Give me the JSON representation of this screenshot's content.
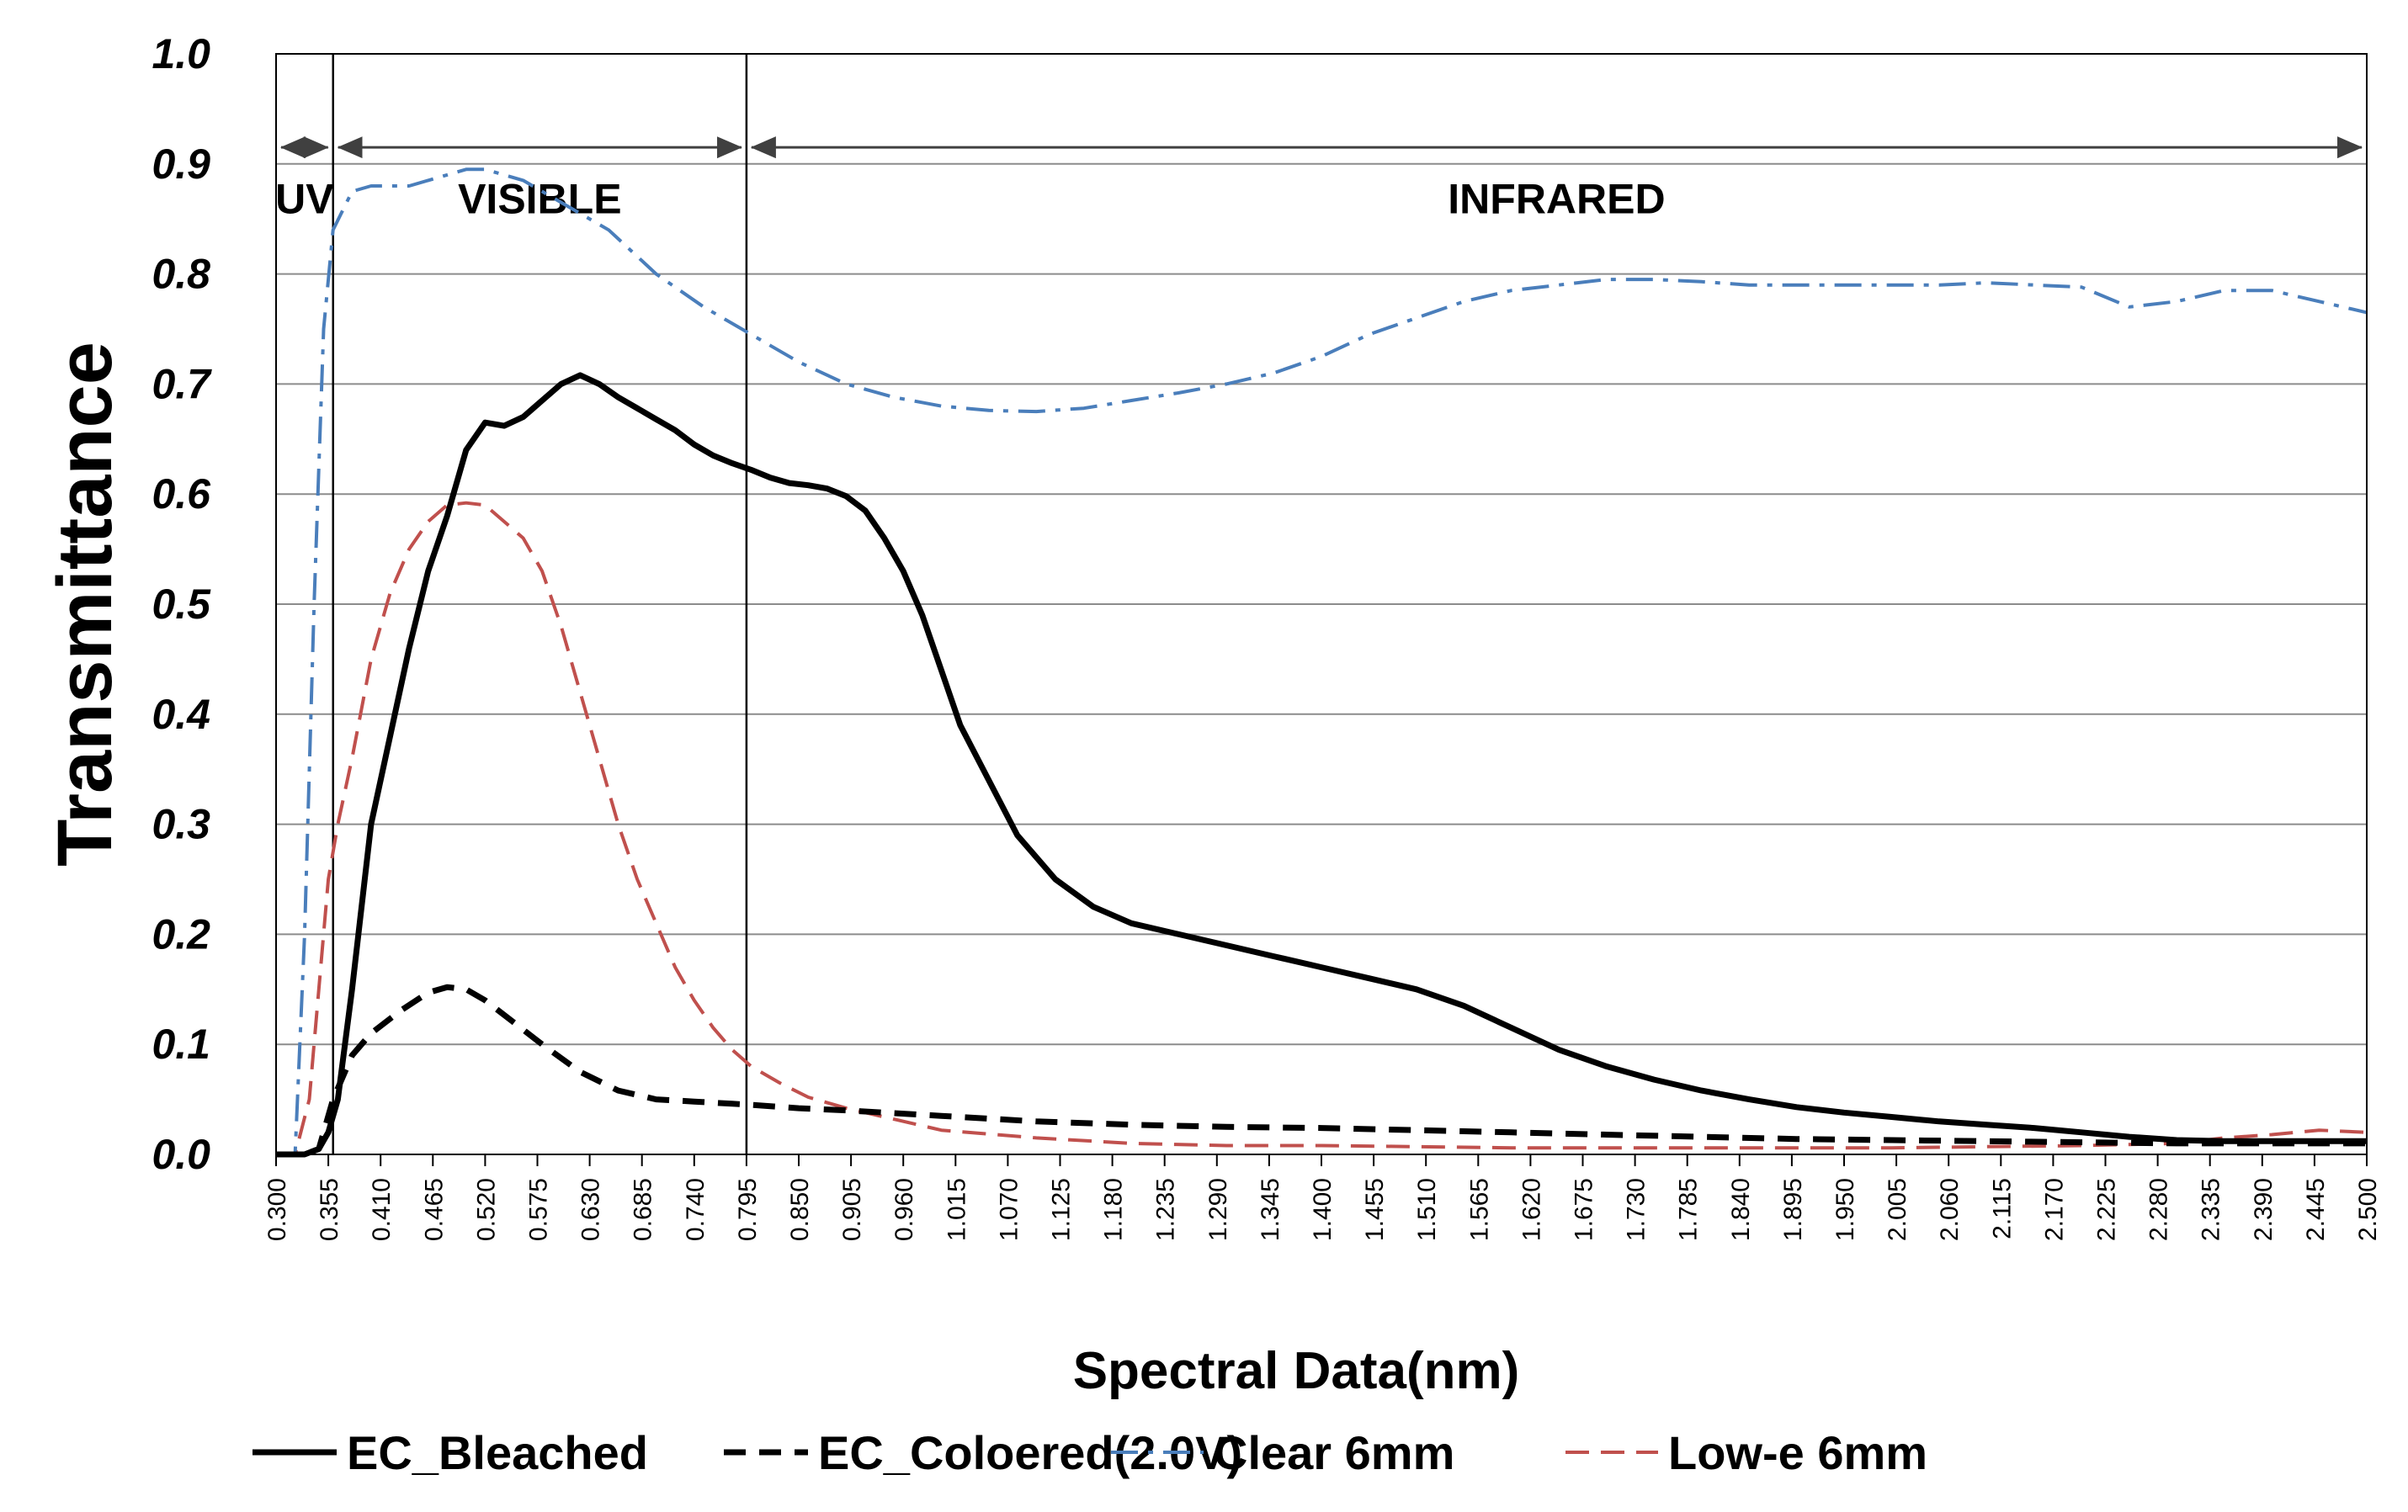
{
  "chart_data": {
    "type": "line",
    "title": "",
    "xlabel": "Spectral Data(nm)",
    "ylabel": "Transmittance",
    "ylim": [
      0,
      1.0
    ],
    "xlim": [
      0.3,
      2.5
    ],
    "grid": true,
    "legend_position": "bottom",
    "y_ticks": [
      "0.0",
      "0.1",
      "0.2",
      "0.3",
      "0.4",
      "0.5",
      "0.6",
      "0.7",
      "0.8",
      "0.9",
      "1.0"
    ],
    "x_ticks": [
      "0.300",
      "0.355",
      "0.410",
      "0.465",
      "0.520",
      "0.575",
      "0.630",
      "0.685",
      "0.740",
      "0.795",
      "0.850",
      "0.905",
      "0.960",
      "1.015",
      "1.070",
      "1.125",
      "1.180",
      "1.235",
      "1.290",
      "1.345",
      "1.400",
      "1.455",
      "1.510",
      "1.565",
      "1.620",
      "1.675",
      "1.730",
      "1.785",
      "1.840",
      "1.895",
      "1.950",
      "2.005",
      "2.060",
      "2.115",
      "2.170",
      "2.225",
      "2.280",
      "2.335",
      "2.390",
      "2.445",
      "2.500"
    ],
    "regions": [
      {
        "label": "UV",
        "from": 0.3,
        "to": 0.36
      },
      {
        "label": "VISIBLE",
        "from": 0.36,
        "to": 0.795
      },
      {
        "label": "INFRARED",
        "from": 0.795,
        "to": 2.5
      }
    ],
    "series": [
      {
        "name": "EC_Bleached",
        "color": "#000000",
        "style": "solid",
        "x": [
          0.3,
          0.33,
          0.345,
          0.355,
          0.365,
          0.38,
          0.4,
          0.42,
          0.44,
          0.46,
          0.48,
          0.5,
          0.52,
          0.54,
          0.56,
          0.58,
          0.6,
          0.62,
          0.64,
          0.66,
          0.68,
          0.7,
          0.72,
          0.74,
          0.76,
          0.78,
          0.8,
          0.82,
          0.84,
          0.86,
          0.88,
          0.9,
          0.92,
          0.94,
          0.96,
          0.98,
          1.0,
          1.02,
          1.05,
          1.08,
          1.12,
          1.16,
          1.2,
          1.25,
          1.3,
          1.35,
          1.4,
          1.45,
          1.5,
          1.55,
          1.6,
          1.65,
          1.7,
          1.75,
          1.8,
          1.85,
          1.9,
          1.95,
          2.0,
          2.05,
          2.1,
          2.15,
          2.2,
          2.25,
          2.3,
          2.35,
          2.4,
          2.45,
          2.5
        ],
        "y": [
          0.0,
          0.0,
          0.005,
          0.02,
          0.05,
          0.15,
          0.3,
          0.38,
          0.46,
          0.53,
          0.58,
          0.64,
          0.665,
          0.662,
          0.67,
          0.685,
          0.7,
          0.708,
          0.7,
          0.688,
          0.678,
          0.668,
          0.658,
          0.645,
          0.635,
          0.628,
          0.622,
          0.615,
          0.61,
          0.608,
          0.605,
          0.598,
          0.585,
          0.56,
          0.53,
          0.49,
          0.44,
          0.39,
          0.34,
          0.29,
          0.25,
          0.225,
          0.21,
          0.2,
          0.19,
          0.18,
          0.17,
          0.16,
          0.15,
          0.135,
          0.115,
          0.095,
          0.08,
          0.068,
          0.058,
          0.05,
          0.043,
          0.038,
          0.034,
          0.03,
          0.027,
          0.024,
          0.02,
          0.016,
          0.013,
          0.012,
          0.012,
          0.012,
          0.012
        ]
      },
      {
        "name": "EC_Coloered(2.0V)",
        "color": "#000000",
        "style": "dashed",
        "x": [
          0.3,
          0.33,
          0.345,
          0.36,
          0.38,
          0.4,
          0.43,
          0.46,
          0.48,
          0.5,
          0.52,
          0.55,
          0.58,
          0.62,
          0.66,
          0.7,
          0.74,
          0.78,
          0.8,
          0.85,
          0.9,
          1.0,
          1.1,
          1.2,
          1.3,
          1.4,
          1.5,
          1.6,
          1.7,
          1.8,
          1.9,
          2.0,
          2.1,
          2.2,
          2.3,
          2.4,
          2.5
        ],
        "y": [
          0.0,
          0.0,
          0.005,
          0.05,
          0.09,
          0.11,
          0.13,
          0.147,
          0.152,
          0.15,
          0.14,
          0.12,
          0.1,
          0.075,
          0.058,
          0.05,
          0.048,
          0.046,
          0.045,
          0.042,
          0.04,
          0.035,
          0.03,
          0.027,
          0.025,
          0.024,
          0.022,
          0.02,
          0.018,
          0.016,
          0.014,
          0.013,
          0.012,
          0.011,
          0.01,
          0.01,
          0.01
        ]
      },
      {
        "name": "Clear 6mm",
        "color": "#4A7EBB",
        "style": "dashdot",
        "x": [
          0.3,
          0.32,
          0.33,
          0.34,
          0.35,
          0.36,
          0.38,
          0.4,
          0.42,
          0.44,
          0.46,
          0.48,
          0.5,
          0.52,
          0.54,
          0.56,
          0.58,
          0.6,
          0.62,
          0.65,
          0.7,
          0.75,
          0.8,
          0.85,
          0.9,
          0.95,
          1.0,
          1.05,
          1.1,
          1.15,
          1.2,
          1.25,
          1.3,
          1.35,
          1.4,
          1.45,
          1.5,
          1.55,
          1.6,
          1.65,
          1.7,
          1.75,
          1.8,
          1.85,
          1.9,
          1.95,
          2.0,
          2.05,
          2.1,
          2.15,
          2.2,
          2.25,
          2.3,
          2.35,
          2.4,
          2.45,
          2.5
        ],
        "y": [
          0.0,
          0.0,
          0.2,
          0.5,
          0.75,
          0.84,
          0.875,
          0.88,
          0.88,
          0.88,
          0.885,
          0.89,
          0.895,
          0.895,
          0.89,
          0.885,
          0.875,
          0.865,
          0.855,
          0.84,
          0.8,
          0.77,
          0.745,
          0.72,
          0.7,
          0.688,
          0.68,
          0.676,
          0.675,
          0.678,
          0.685,
          0.692,
          0.7,
          0.71,
          0.725,
          0.745,
          0.76,
          0.775,
          0.785,
          0.79,
          0.795,
          0.795,
          0.793,
          0.79,
          0.79,
          0.79,
          0.79,
          0.79,
          0.792,
          0.79,
          0.788,
          0.77,
          0.775,
          0.785,
          0.785,
          0.775,
          0.765
        ]
      },
      {
        "name": "Low-e 6mm",
        "color": "#C0504D",
        "style": "dashed",
        "x": [
          0.3,
          0.32,
          0.335,
          0.345,
          0.355,
          0.365,
          0.38,
          0.4,
          0.42,
          0.44,
          0.46,
          0.48,
          0.5,
          0.52,
          0.54,
          0.56,
          0.58,
          0.6,
          0.62,
          0.64,
          0.66,
          0.68,
          0.7,
          0.72,
          0.74,
          0.76,
          0.78,
          0.8,
          0.83,
          0.86,
          0.9,
          0.95,
          1.0,
          1.1,
          1.2,
          1.3,
          1.4,
          1.5,
          1.6,
          1.7,
          1.8,
          1.9,
          2.0,
          2.1,
          2.2,
          2.3,
          2.35,
          2.4,
          2.45,
          2.5
        ],
        "y": [
          0.0,
          0.0,
          0.05,
          0.15,
          0.25,
          0.3,
          0.36,
          0.45,
          0.51,
          0.55,
          0.575,
          0.59,
          0.592,
          0.59,
          0.575,
          0.56,
          0.53,
          0.48,
          0.42,
          0.36,
          0.3,
          0.25,
          0.21,
          0.17,
          0.14,
          0.115,
          0.095,
          0.08,
          0.065,
          0.052,
          0.042,
          0.032,
          0.022,
          0.015,
          0.01,
          0.008,
          0.008,
          0.007,
          0.006,
          0.006,
          0.006,
          0.006,
          0.006,
          0.007,
          0.008,
          0.01,
          0.015,
          0.018,
          0.022,
          0.02
        ]
      }
    ]
  }
}
